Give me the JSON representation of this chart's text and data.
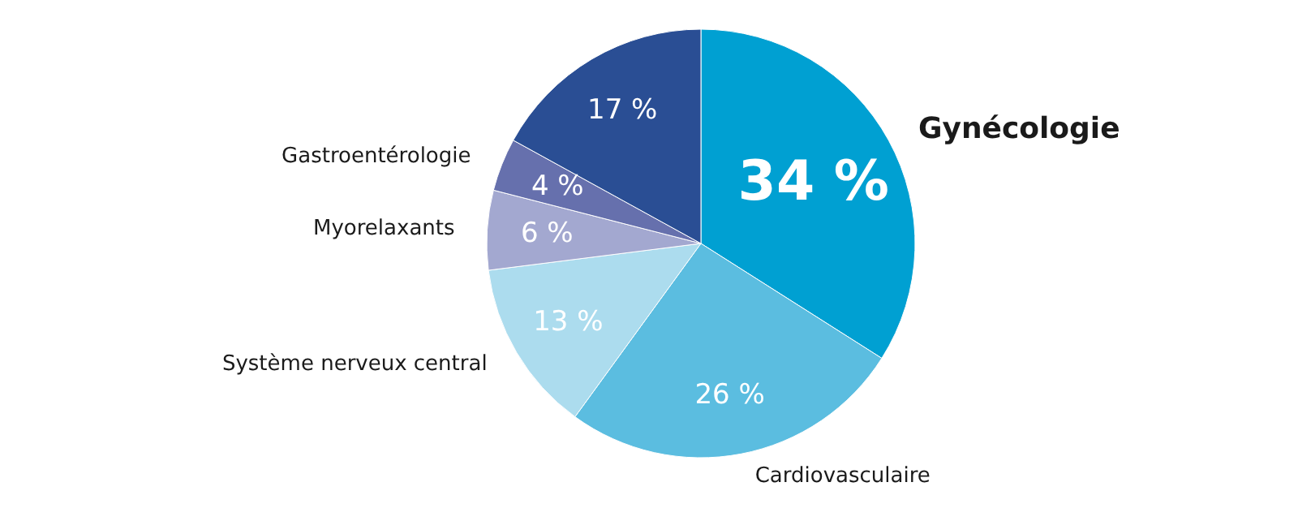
{
  "chart_data": {
    "type": "pie",
    "categories": [
      "Gynécologie",
      "Cardiovasculaire",
      "Système nerveux central",
      "Myorelaxants",
      "Gastroentérologie",
      null
    ],
    "values": [
      34,
      26,
      13,
      6,
      4,
      17
    ],
    "colors": [
      "#00a0d2",
      "#5bbde0",
      "#acdcee",
      "#a3a8d0",
      "#6670ad",
      "#2a4e94"
    ],
    "value_labels": [
      "34 %",
      "26 %",
      "13 %",
      "6 %",
      "4 %",
      "17 %"
    ]
  }
}
